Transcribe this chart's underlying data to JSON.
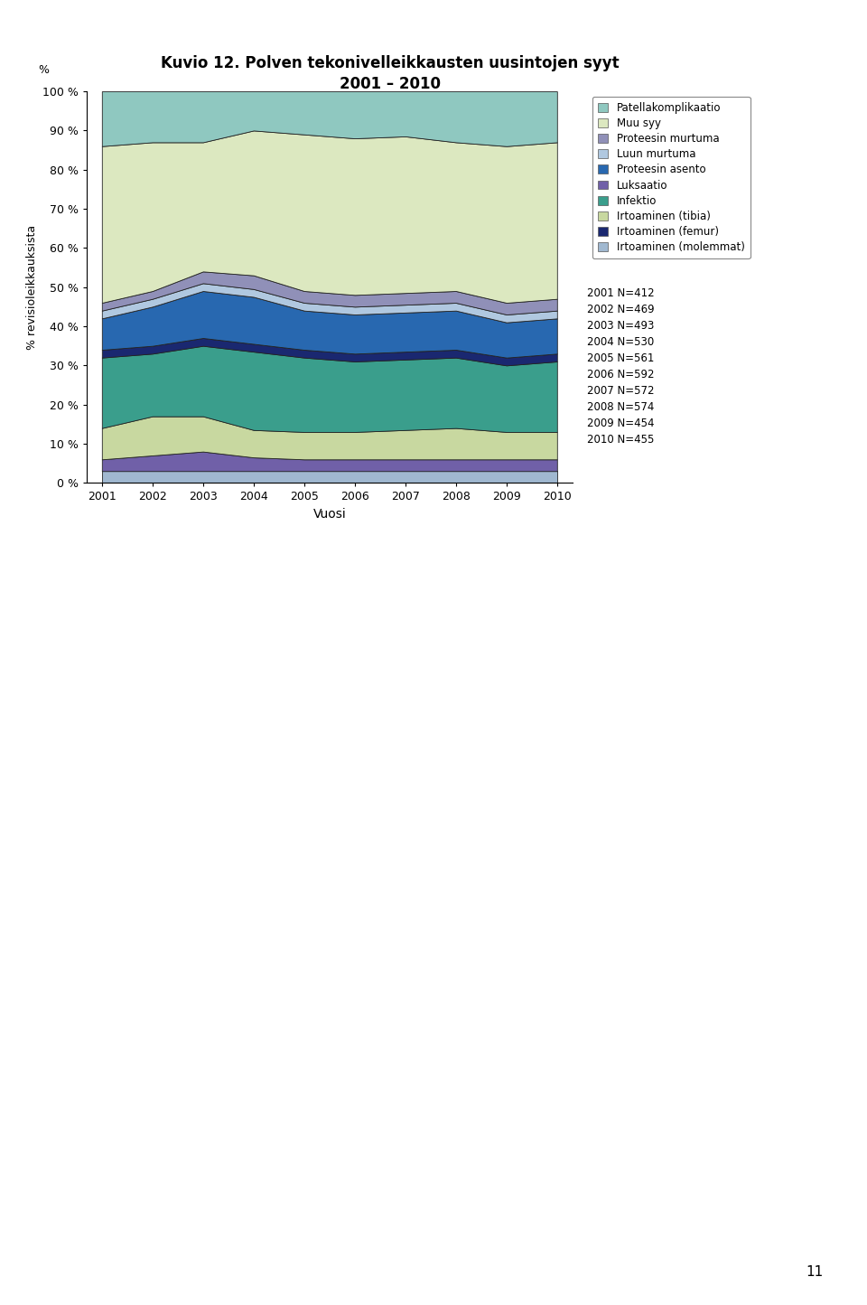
{
  "title_line1": "Kuvio 12. Polven tekonivelleikkausten uusintojen syyt",
  "title_line2": "2001 – 2010",
  "xlabel": "Vuosi",
  "ylabel": "% revisioleikkauksista",
  "years": [
    2001,
    2002,
    2003,
    2004,
    2005,
    2006,
    2007,
    2008,
    2009,
    2010
  ],
  "stack_order": [
    "Irtoaminen (molemmat)",
    "Luksaatio",
    "Irtoaminen (tibia)",
    "Infektio",
    "Irtoaminen (femur)",
    "Proteesin asento",
    "Luun murtuma",
    "Proteesin murtuma",
    "Muu syy",
    "Patellakomplikaatio"
  ],
  "color_map": {
    "Patellakomplikaatio": "#8fc8c0",
    "Muu syy": "#dce8c0",
    "Proteesin murtuma": "#9090b8",
    "Luun murtuma": "#b0c8e0",
    "Proteesin asento": "#2868b0",
    "Luksaatio": "#7060a8",
    "Infektio": "#3a9e8c",
    "Irtoaminen (tibia)": "#c8d8a0",
    "Irtoaminen (femur)": "#1a2870",
    "Irtoaminen (molemmat)": "#a0b8d0"
  },
  "data": {
    "Irtoaminen (molemmat)": [
      3.0,
      3.0,
      3.0,
      3.0,
      3.0,
      3.0,
      3.0,
      3.0,
      3.0,
      3.0
    ],
    "Luksaatio": [
      3.0,
      4.0,
      5.0,
      3.5,
      3.0,
      3.0,
      3.0,
      3.0,
      3.0,
      3.0
    ],
    "Irtoaminen (tibia)": [
      8.0,
      10.0,
      9.0,
      7.0,
      7.0,
      7.0,
      7.5,
      8.0,
      7.0,
      7.0
    ],
    "Infektio": [
      18.0,
      16.0,
      18.0,
      20.0,
      19.0,
      18.0,
      18.0,
      18.0,
      17.0,
      18.0
    ],
    "Irtoaminen (femur)": [
      2.0,
      2.0,
      2.0,
      2.0,
      2.0,
      2.0,
      2.0,
      2.0,
      2.0,
      2.0
    ],
    "Proteesin asento": [
      8.0,
      10.0,
      12.0,
      12.0,
      10.0,
      10.0,
      10.0,
      10.0,
      9.0,
      9.0
    ],
    "Luun murtuma": [
      2.0,
      2.0,
      2.0,
      2.0,
      2.0,
      2.0,
      2.0,
      2.0,
      2.0,
      2.0
    ],
    "Proteesin murtuma": [
      2.0,
      2.0,
      3.0,
      3.5,
      3.0,
      3.0,
      3.0,
      3.0,
      3.0,
      3.0
    ],
    "Muu syy": [
      40.0,
      38.0,
      33.0,
      37.0,
      40.0,
      40.0,
      40.0,
      38.0,
      40.0,
      40.0
    ],
    "Patellakomplikaatio": [
      14.0,
      13.0,
      13.0,
      10.0,
      11.0,
      12.0,
      11.5,
      13.0,
      14.0,
      13.0
    ]
  },
  "legend_order": [
    "Patellakomplikaatio",
    "Muu syy",
    "Proteesin murtuma",
    "Luun murtuma",
    "Proteesin asento",
    "Luksaatio",
    "Infektio",
    "Irtoaminen (tibia)",
    "Irtoaminen (femur)",
    "Irtoaminen (molemmat)"
  ],
  "sample_sizes": {
    "2001": "N=412",
    "2002": "N=469",
    "2003": "N=493",
    "2004": "N=530",
    "2005": "N=561",
    "2006": "N=592",
    "2007": "N=572",
    "2008": "N=574",
    "2009": "N=454",
    "2010": "N=455"
  },
  "background_color": "#ffffff",
  "page_number": "11",
  "figwidth": 9.6,
  "figheight": 14.44,
  "dpi": 100
}
